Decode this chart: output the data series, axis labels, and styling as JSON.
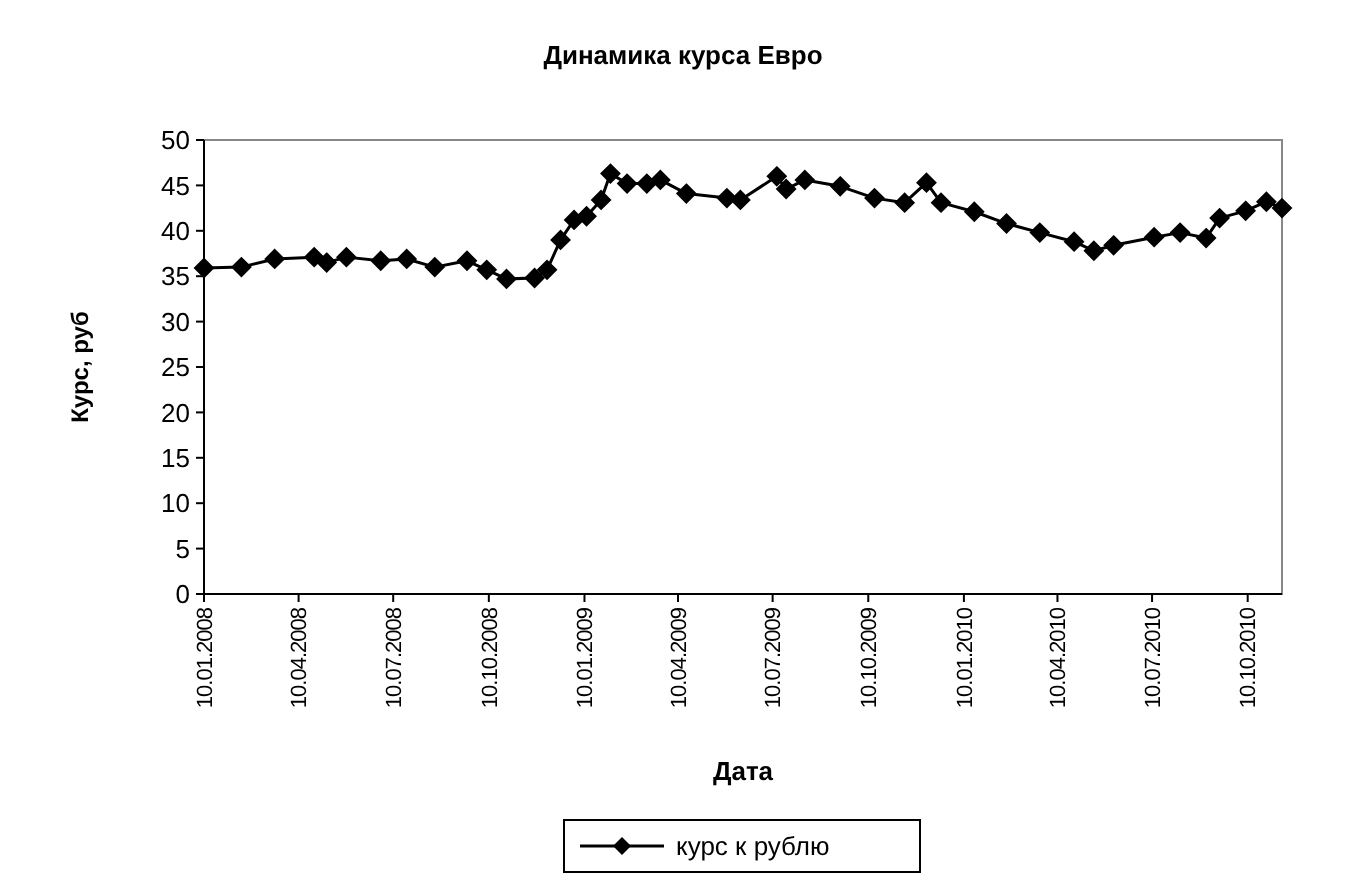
{
  "chart_data": {
    "type": "line",
    "title": "Динамика курса Евро",
    "xlabel": "Дата",
    "ylabel": "Курс, руб",
    "xlim": [
      "2008-01-10",
      "2010-11-12"
    ],
    "xticks": [
      {
        "value": "2008-01-10",
        "label": "10.01.2008"
      },
      {
        "value": "2008-04-10",
        "label": "10.04.2008"
      },
      {
        "value": "2008-07-10",
        "label": "10.07.2008"
      },
      {
        "value": "2008-10-10",
        "label": "10.10.2008"
      },
      {
        "value": "2009-01-10",
        "label": "10.01.2009"
      },
      {
        "value": "2009-04-10",
        "label": "10.04.2009"
      },
      {
        "value": "2009-07-10",
        "label": "10.07.2009"
      },
      {
        "value": "2009-10-10",
        "label": "10.10.2009"
      },
      {
        "value": "2010-01-10",
        "label": "10.01.2010"
      },
      {
        "value": "2010-04-10",
        "label": "10.04.2010"
      },
      {
        "value": "2010-07-10",
        "label": "10.07.2010"
      },
      {
        "value": "2010-10-10",
        "label": "10.10.2010"
      }
    ],
    "ylim": [
      0,
      50
    ],
    "yticks": [
      0,
      5,
      10,
      15,
      20,
      25,
      30,
      35,
      40,
      45,
      50
    ],
    "grid": false,
    "legend": "bottom",
    "marker": "diamond",
    "line_style": "solid",
    "x": [
      "2008-01-10",
      "2008-02-15",
      "2008-03-18",
      "2008-04-25",
      "2008-05-07",
      "2008-05-26",
      "2008-06-28",
      "2008-07-23",
      "2008-08-19",
      "2008-09-19",
      "2008-10-08",
      "2008-10-27",
      "2008-11-23",
      "2008-12-05",
      "2008-12-18",
      "2008-12-31",
      "2009-01-12",
      "2009-01-26",
      "2009-02-04",
      "2009-02-20",
      "2009-03-11",
      "2009-03-24",
      "2009-04-18",
      "2009-05-27",
      "2009-06-09",
      "2009-07-14",
      "2009-07-23",
      "2009-08-10",
      "2009-09-13",
      "2009-10-16",
      "2009-11-14",
      "2009-12-05",
      "2009-12-19",
      "2010-01-20",
      "2010-02-20",
      "2010-03-24",
      "2010-04-26",
      "2010-05-15",
      "2010-06-03",
      "2010-07-12",
      "2010-08-06",
      "2010-08-31",
      "2010-09-13",
      "2010-10-08",
      "2010-10-28",
      "2010-11-12"
    ],
    "series": [
      {
        "name": "курс к рублю",
        "color": "#000000",
        "values": [
          35.9,
          36.0,
          36.9,
          37.1,
          36.5,
          37.1,
          36.7,
          36.9,
          36.0,
          36.7,
          35.7,
          34.7,
          34.8,
          35.7,
          39.0,
          41.2,
          41.6,
          43.4,
          46.3,
          45.2,
          45.2,
          45.6,
          44.1,
          43.6,
          43.4,
          46.0,
          44.6,
          45.6,
          44.9,
          43.6,
          43.1,
          45.3,
          43.1,
          42.1,
          40.8,
          39.8,
          38.8,
          37.8,
          38.4,
          39.3,
          39.8,
          39.2,
          41.4,
          42.2,
          43.2,
          42.5
        ]
      }
    ]
  }
}
